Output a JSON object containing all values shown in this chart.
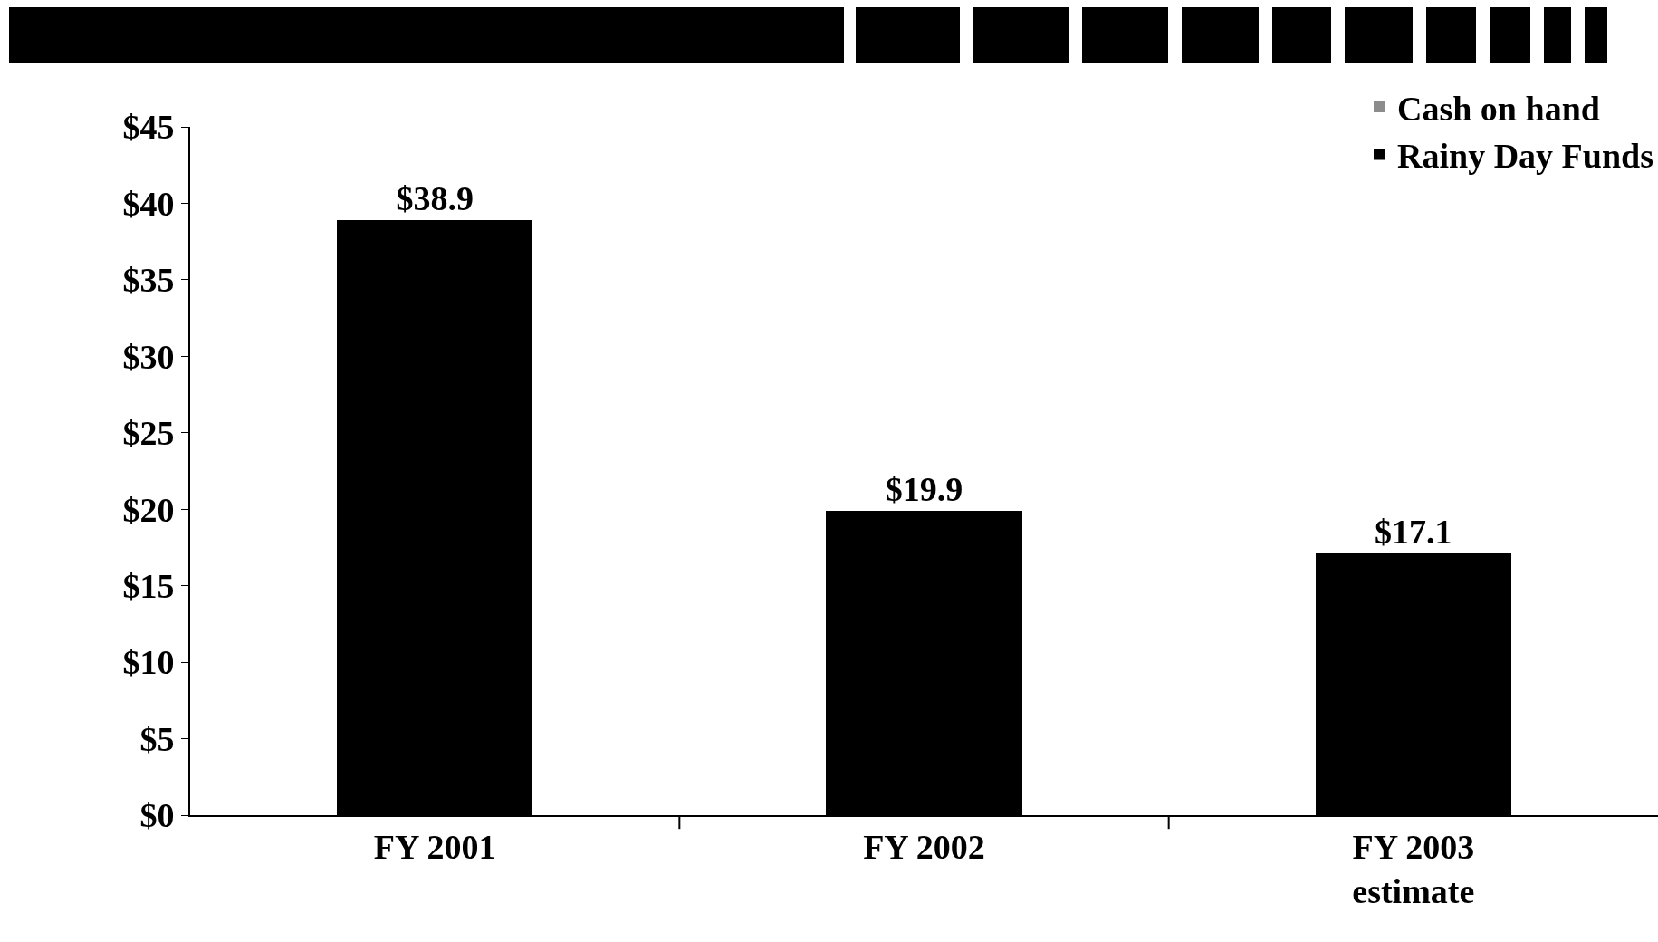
{
  "chart_data": {
    "type": "bar",
    "categories": [
      "FY 2001",
      "FY 2002",
      "FY 2003\nestimate"
    ],
    "series": [
      {
        "name": "Cash on hand",
        "color": "#8c8c8c",
        "values": [
          null,
          null,
          null
        ]
      },
      {
        "name": "Rainy Day Funds",
        "color": "#000000",
        "values": [
          38.9,
          19.9,
          17.1
        ]
      }
    ],
    "stacked": true,
    "value_labels": [
      "$38.9",
      "$19.9",
      "$17.1"
    ],
    "ylim": [
      0,
      45
    ],
    "yticks": [
      {
        "value": 0,
        "label": "$0"
      },
      {
        "value": 5,
        "label": "$5"
      },
      {
        "value": 10,
        "label": "$10"
      },
      {
        "value": 15,
        "label": "$15"
      },
      {
        "value": 20,
        "label": "$20"
      },
      {
        "value": 25,
        "label": "$25"
      },
      {
        "value": 30,
        "label": "$30"
      },
      {
        "value": 35,
        "label": "$35"
      },
      {
        "value": 40,
        "label": "$40"
      },
      {
        "value": 45,
        "label": "$45"
      }
    ],
    "grid": false,
    "legend": "top right"
  }
}
